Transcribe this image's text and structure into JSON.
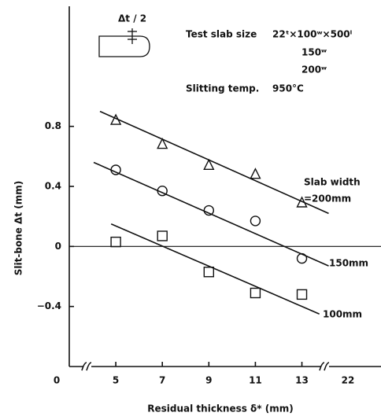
{
  "chart_data": {
    "type": "scatter",
    "x_label": "Residual thickness δ* (mm)",
    "y_label": "Slit-bone Δt (mm)",
    "annotations": [
      "Δt / 2",
      "Test slab size",
      "22ᵗ×100ʷ×500ˡ",
      "150ʷ",
      "200ʷ",
      "Slitting temp.",
      "950°C",
      "Slab width"
    ],
    "xlim": [
      3,
      16.4
    ],
    "ylim": [
      -0.8,
      1.6
    ],
    "xticks": [
      5,
      7,
      9,
      11,
      13
    ],
    "break_ticks": [
      0,
      22
    ],
    "yticks": [
      0.8,
      0.4,
      0,
      {
        "value": -0.4,
        "label": "−0.4"
      }
    ],
    "zero_line": true,
    "series": [
      {
        "name": "=200mm",
        "marker": "triangle",
        "color": "#111",
        "x": [
          5,
          7,
          9,
          11,
          13
        ],
        "values": [
          0.84,
          0.68,
          0.54,
          0.48,
          0.29
        ],
        "fit_x": [
          4.32,
          14.15
        ],
        "fit_values": [
          0.9,
          0.22
        ]
      },
      {
        "name": "150mm",
        "marker": "circle",
        "color": "#111",
        "x": [
          5,
          7,
          9,
          11,
          13
        ],
        "values": [
          0.51,
          0.37,
          0.24,
          0.17,
          -0.08
        ],
        "fit_x": [
          4.05,
          14.15
        ],
        "fit_values": [
          0.56,
          -0.13
        ]
      },
      {
        "name": "100mm",
        "marker": "square",
        "color": "#111",
        "x": [
          5,
          7,
          9,
          11,
          13
        ],
        "values": [
          0.03,
          0.07,
          -0.17,
          -0.31,
          -0.32
        ],
        "fit_x": [
          4.8,
          13.75
        ],
        "fit_values": [
          0.15,
          -0.45
        ]
      }
    ]
  }
}
